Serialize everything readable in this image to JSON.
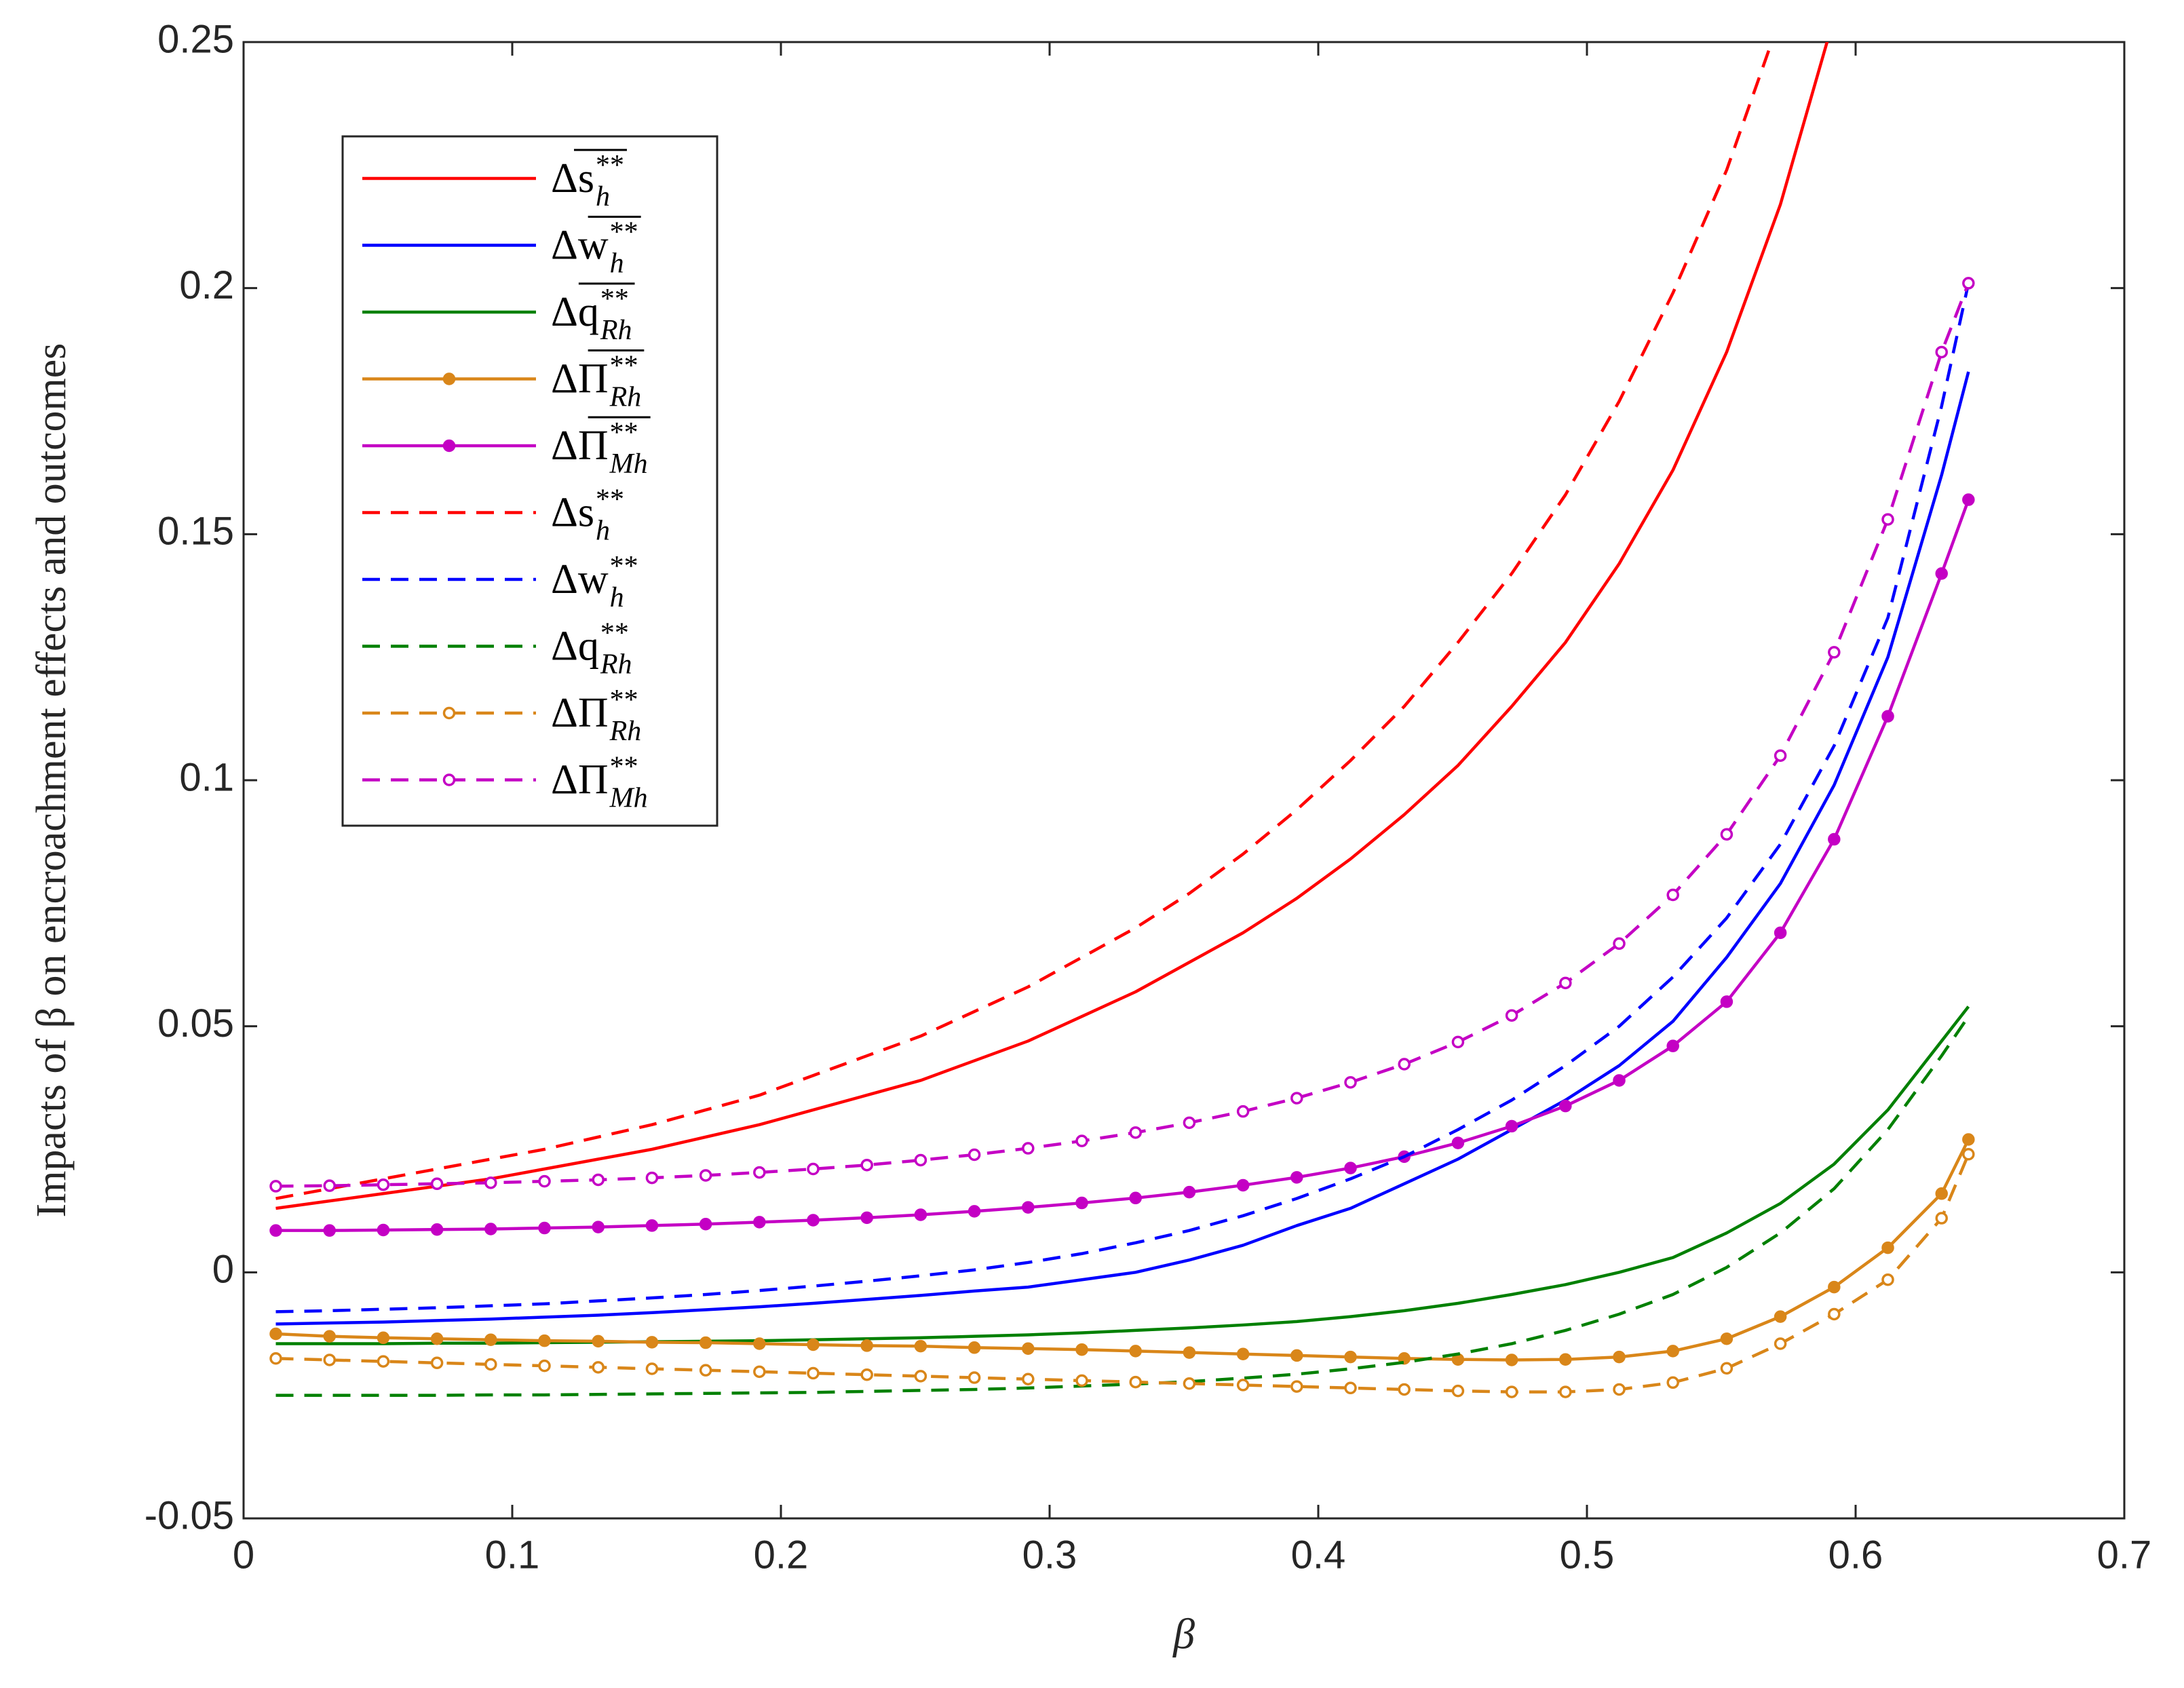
{
  "chart_data": {
    "type": "line",
    "xlabel": "β",
    "ylabel": "Impacts of β on encroachment effects and outcomes",
    "xlim": [
      0,
      0.7
    ],
    "ylim": [
      -0.05,
      0.25
    ],
    "xticks": [
      0,
      0.1,
      0.2,
      0.3,
      0.4,
      0.5,
      0.6,
      0.7
    ],
    "yticks": [
      -0.05,
      0,
      0.05,
      0.1,
      0.15,
      0.2,
      0.25
    ],
    "legend": "northwest",
    "x": [
      0.012,
      0.032,
      0.052,
      0.072,
      0.092,
      0.112,
      0.132,
      0.152,
      0.172,
      0.192,
      0.212,
      0.232,
      0.252,
      0.272,
      0.292,
      0.312,
      0.332,
      0.352,
      0.372,
      0.392,
      0.412,
      0.432,
      0.452,
      0.472,
      0.492,
      0.512,
      0.532,
      0.552,
      0.572,
      0.592,
      0.612,
      0.632,
      0.642
    ],
    "series": [
      {
        "name": "Δs",
        "subscript": "h",
        "superscript": "**",
        "overline": true,
        "color": "#ff0000",
        "linestyle": "solid",
        "marker": "none",
        "values": [
          0.013,
          0.0145,
          0.016,
          0.0175,
          0.019,
          0.021,
          0.023,
          0.025,
          0.0275,
          0.03,
          0.033,
          0.036,
          0.039,
          0.043,
          0.047,
          0.052,
          0.057,
          0.063,
          0.069,
          0.076,
          0.084,
          0.093,
          0.103,
          0.115,
          0.128,
          0.144,
          0.163,
          0.187,
          0.217,
          0.255,
          null,
          null,
          null
        ]
      },
      {
        "name": "Δw",
        "subscript": "h",
        "superscript": "**",
        "overline": true,
        "color": "#0000ff",
        "linestyle": "solid",
        "marker": "none",
        "values": [
          -0.0105,
          -0.0103,
          -0.0101,
          -0.0098,
          -0.0095,
          -0.0091,
          -0.0087,
          -0.0082,
          -0.0076,
          -0.007,
          -0.0063,
          -0.0055,
          -0.0047,
          -0.0038,
          -0.003,
          -0.0015,
          0,
          0.0025,
          0.0055,
          0.0095,
          0.013,
          0.018,
          0.023,
          0.029,
          0.035,
          0.042,
          0.051,
          0.064,
          0.079,
          0.099,
          0.125,
          0.162,
          0.183
        ]
      },
      {
        "name": "Δq",
        "subscript": "Rh",
        "superscript": "**",
        "overline": true,
        "color": "#008000",
        "linestyle": "solid",
        "marker": "none",
        "values": [
          -0.0145,
          -0.0145,
          -0.0145,
          -0.0144,
          -0.0144,
          -0.0143,
          -0.0142,
          -0.0141,
          -0.014,
          -0.0139,
          -0.0137,
          -0.0135,
          -0.0133,
          -0.013,
          -0.0127,
          -0.0123,
          -0.0118,
          -0.0113,
          -0.0107,
          -0.01,
          -0.009,
          -0.0078,
          -0.0063,
          -0.0045,
          -0.0025,
          0,
          0.003,
          0.008,
          0.014,
          0.022,
          0.033,
          0.047,
          0.054
        ]
      },
      {
        "name": "ΔΠ",
        "subscript": "Rh",
        "superscript": "**",
        "overline": true,
        "color": "#d98619",
        "linestyle": "solid",
        "marker": "filled",
        "values": [
          -0.0125,
          -0.013,
          -0.0133,
          -0.0135,
          -0.0137,
          -0.0139,
          -0.014,
          -0.0142,
          -0.0143,
          -0.0145,
          -0.0147,
          -0.0149,
          -0.015,
          -0.0153,
          -0.0155,
          -0.0157,
          -0.016,
          -0.0163,
          -0.0166,
          -0.0169,
          -0.0172,
          -0.0175,
          -0.0177,
          -0.0178,
          -0.0177,
          -0.0172,
          -0.016,
          -0.0135,
          -0.009,
          -0.003,
          0.005,
          0.016,
          0.027
        ]
      },
      {
        "name": "ΔΠ",
        "subscript": "Mh",
        "superscript": "**",
        "overline": true,
        "color": "#c400c4",
        "linestyle": "solid",
        "marker": "filled",
        "values": [
          0.0085,
          0.0085,
          0.0086,
          0.0087,
          0.0088,
          0.009,
          0.0092,
          0.0095,
          0.0098,
          0.0102,
          0.0106,
          0.0111,
          0.0117,
          0.0124,
          0.0132,
          0.0141,
          0.0151,
          0.0163,
          0.0177,
          0.0193,
          0.0212,
          0.0235,
          0.0263,
          0.0297,
          0.0338,
          0.039,
          0.046,
          0.055,
          0.069,
          0.088,
          0.113,
          0.142,
          0.157
        ]
      },
      {
        "name": "Δs",
        "subscript": "h",
        "superscript": "**",
        "overline": false,
        "color": "#ff0000",
        "linestyle": "dashed",
        "marker": "none",
        "values": [
          0.015,
          0.017,
          0.019,
          0.021,
          0.023,
          0.025,
          0.0275,
          0.03,
          0.033,
          0.036,
          0.04,
          0.044,
          0.048,
          0.053,
          0.058,
          0.064,
          0.07,
          0.077,
          0.085,
          0.094,
          0.104,
          0.115,
          0.128,
          0.142,
          0.158,
          0.177,
          0.199,
          0.224,
          0.255,
          null,
          null,
          null,
          null
        ]
      },
      {
        "name": "Δw",
        "subscript": "h",
        "superscript": "**",
        "overline": false,
        "color": "#0000ff",
        "linestyle": "dashed",
        "marker": "none",
        "values": [
          -0.008,
          -0.0078,
          -0.0075,
          -0.0072,
          -0.0068,
          -0.0064,
          -0.0058,
          -0.0052,
          -0.0045,
          -0.0037,
          -0.0028,
          -0.0018,
          -0.0007,
          0.0005,
          0.002,
          0.0038,
          0.006,
          0.0085,
          0.0115,
          0.015,
          0.019,
          0.0235,
          0.029,
          0.035,
          0.042,
          0.05,
          0.06,
          0.072,
          0.087,
          0.107,
          0.133,
          0.176,
          0.201
        ]
      },
      {
        "name": "Δq",
        "subscript": "Rh",
        "superscript": "**",
        "overline": false,
        "color": "#008000",
        "linestyle": "dashed",
        "marker": "none",
        "values": [
          -0.025,
          -0.025,
          -0.025,
          -0.025,
          -0.0249,
          -0.0249,
          -0.0248,
          -0.0247,
          -0.0246,
          -0.0245,
          -0.0244,
          -0.0242,
          -0.024,
          -0.0238,
          -0.0235,
          -0.0231,
          -0.0227,
          -0.0222,
          -0.0215,
          -0.0207,
          -0.0196,
          -0.0183,
          -0.0166,
          -0.0145,
          -0.0118,
          -0.0085,
          -0.0045,
          0.001,
          0.008,
          0.017,
          0.029,
          0.044,
          0.052
        ]
      },
      {
        "name": "ΔΠ",
        "subscript": "Rh",
        "superscript": "**",
        "overline": false,
        "color": "#d98619",
        "linestyle": "dashed",
        "marker": "open",
        "values": [
          -0.0175,
          -0.0178,
          -0.0181,
          -0.0184,
          -0.0187,
          -0.019,
          -0.0193,
          -0.0196,
          -0.0199,
          -0.0202,
          -0.0205,
          -0.0208,
          -0.0211,
          -0.0214,
          -0.0217,
          -0.022,
          -0.0223,
          -0.0226,
          -0.0229,
          -0.0232,
          -0.0235,
          -0.0238,
          -0.0241,
          -0.0243,
          -0.0243,
          -0.0238,
          -0.0224,
          -0.0195,
          -0.0145,
          -0.0085,
          -0.0015,
          0.011,
          0.024
        ]
      },
      {
        "name": "ΔΠ",
        "subscript": "Mh",
        "superscript": "**",
        "overline": false,
        "color": "#c400c4",
        "linestyle": "dashed",
        "marker": "open",
        "values": [
          0.0175,
          0.0176,
          0.0178,
          0.018,
          0.0182,
          0.0185,
          0.0188,
          0.0192,
          0.0197,
          0.0203,
          0.021,
          0.0218,
          0.0228,
          0.0239,
          0.0252,
          0.0267,
          0.0284,
          0.0304,
          0.0327,
          0.0354,
          0.0386,
          0.0423,
          0.0468,
          0.0522,
          0.0588,
          0.0668,
          0.0767,
          0.089,
          0.105,
          0.126,
          0.153,
          0.187,
          0.201
        ]
      }
    ]
  }
}
